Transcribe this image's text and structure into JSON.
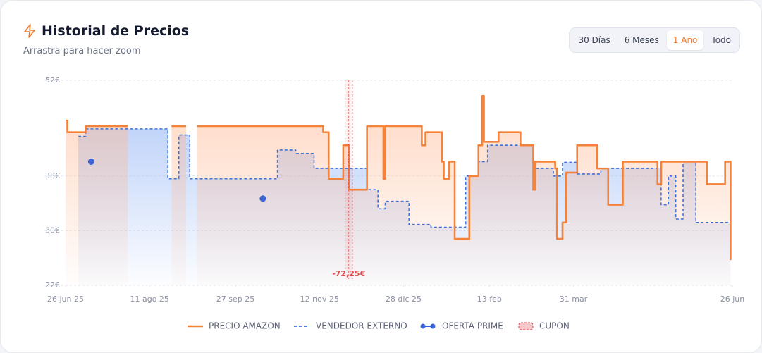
{
  "header": {
    "title": "Historial de Precios",
    "subtitle": "Arrastra para hacer zoom",
    "range_buttons": [
      "30 Días",
      "6 Meses",
      "1 Año",
      "Todo"
    ],
    "selected": "1 Año"
  },
  "chart_data": {
    "type": "step-line",
    "xlim": [
      "2025-06-26",
      "2026-06-26"
    ],
    "xticks": [
      {
        "value": "2025-06-26",
        "label": "26 jun 25"
      },
      {
        "value": "2025-08-11",
        "label": "11 ago 25"
      },
      {
        "value": "2025-09-27",
        "label": "27 sep 25"
      },
      {
        "value": "2025-11-12",
        "label": "12 nov 25"
      },
      {
        "value": "2025-12-28",
        "label": "28 dic 25"
      },
      {
        "value": "2026-02-13",
        "label": "13 feb"
      },
      {
        "value": "2026-03-31",
        "label": "31 mar"
      },
      {
        "value": "2026-06-26",
        "label": "26 jun"
      }
    ],
    "ylim": [
      22,
      52
    ],
    "yticks": [
      {
        "value": 22,
        "label": "22€"
      },
      {
        "value": 30,
        "label": "30€"
      },
      {
        "value": 38,
        "label": "38€"
      },
      {
        "value": 52,
        "label": "52€"
      }
    ],
    "grid": true,
    "series": [
      {
        "name": "PRECIO AMAZON",
        "color": "#f5823a",
        "style": "solid",
        "x": [
          "2025-06-26",
          "2025-06-27",
          "2025-07-07",
          "2025-07-30",
          "2025-08-23",
          "2025-08-31",
          "2025-09-06",
          "2025-11-14",
          "2025-11-17",
          "2025-11-25",
          "2025-11-28",
          "2025-12-08",
          "2025-12-17",
          "2025-12-18",
          "2026-01-07",
          "2026-01-09",
          "2026-01-18",
          "2026-01-19",
          "2026-01-22",
          "2026-01-25",
          "2026-02-02",
          "2026-02-07",
          "2026-02-09",
          "2026-02-10",
          "2026-02-18",
          "2026-03-02",
          "2026-03-09",
          "2026-03-10",
          "2026-03-21",
          "2026-03-22",
          "2026-03-25",
          "2026-03-27",
          "2026-04-02",
          "2026-04-13",
          "2026-04-19",
          "2026-04-27",
          "2026-05-16",
          "2026-05-18",
          "2026-06-12",
          "2026-06-22",
          "2026-06-25"
        ],
        "values": [
          46.1,
          44.4,
          45.3,
          null,
          45.3,
          null,
          45.3,
          44.4,
          37.6,
          42.5,
          36.0,
          45.3,
          37.6,
          45.3,
          42.5,
          44.4,
          40.1,
          37.6,
          40.1,
          28.8,
          38.0,
          42.5,
          49.7,
          43.0,
          44.4,
          42.5,
          36.0,
          40.1,
          39.1,
          28.8,
          31.2,
          38.5,
          42.5,
          39.1,
          33.8,
          40.1,
          36.8,
          40.1,
          36.8,
          40.1,
          25.7
        ]
      },
      {
        "name": "VENDEDOR EXTERNO",
        "color": "#3f72d9",
        "style": "dashed",
        "x": [
          "2025-07-03",
          "2025-07-07",
          "2025-08-21",
          "2025-08-27",
          "2025-09-02",
          "2025-10-20",
          "2025-10-30",
          "2025-11-09",
          "2025-12-08",
          "2025-12-14",
          "2025-12-18",
          "2025-12-31",
          "2026-01-12",
          "2026-01-31",
          "2026-02-07",
          "2026-02-12",
          "2026-02-16",
          "2026-03-09",
          "2026-03-20",
          "2026-03-25",
          "2026-04-02",
          "2026-04-15",
          "2026-05-18",
          "2026-05-22",
          "2026-05-26",
          "2026-05-30",
          "2026-06-06",
          "2026-06-25"
        ],
        "values": [
          43.8,
          44.9,
          37.6,
          44.0,
          37.6,
          41.8,
          41.3,
          39.1,
          36.0,
          33.2,
          34.3,
          30.9,
          30.5,
          38.0,
          40.1,
          42.5,
          42.5,
          39.1,
          38.0,
          40.0,
          38.3,
          39.1,
          33.8,
          38.0,
          31.7,
          40.1,
          31.2,
          31.2
        ]
      },
      {
        "name": "OFERTA PRIME",
        "color": "#3b63d6",
        "style": "points",
        "x": [
          "2025-07-10",
          "2025-10-12"
        ],
        "values": [
          40.1,
          34.7
        ]
      }
    ],
    "coupons": {
      "name": "CUPÓN",
      "color": "#e0484f",
      "start": "2025-11-26",
      "end": "2025-11-30",
      "label": "-72,25€"
    }
  }
}
